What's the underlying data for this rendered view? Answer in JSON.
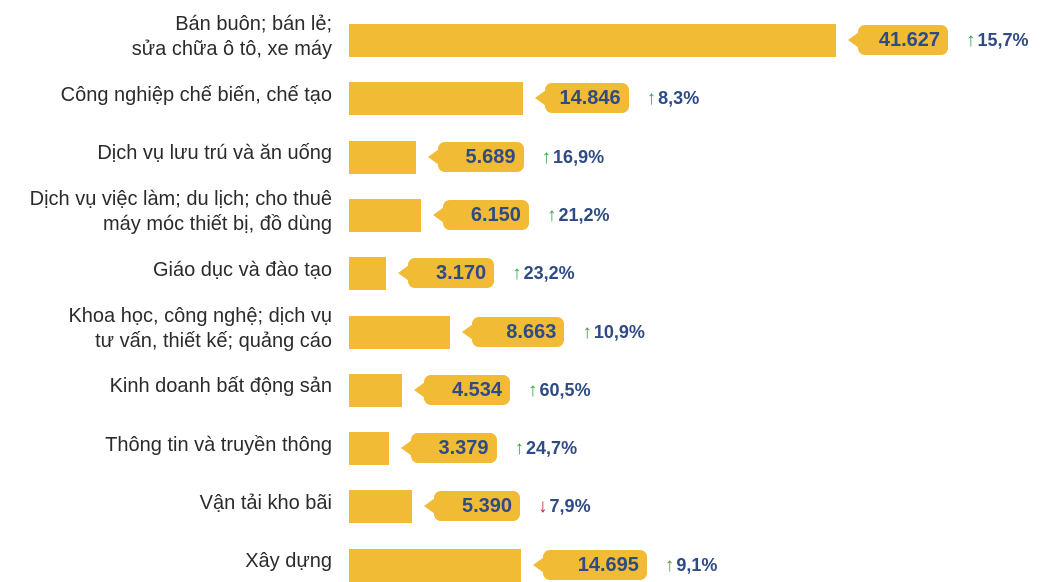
{
  "colors": {
    "bar": "#f1bb35",
    "value_text": "#2e4b86",
    "up": "#3aa648",
    "down": "#c0282f",
    "label": "#2b2b2b"
  },
  "icons": {
    "up": "up-arrow-icon",
    "down": "down-arrow-icon"
  },
  "chart_data": {
    "type": "bar",
    "orientation": "horizontal",
    "title": "",
    "xlabel": "",
    "ylabel": "",
    "xlim": [
      0,
      41627
    ],
    "grid": false,
    "categories": [
      "Bán buôn; bán lẻ;\nsửa chữa ô tô, xe máy",
      "Công nghiệp chế biến, chế tạo",
      "Dịch vụ lưu trú và ăn uống",
      "Dịch vụ việc làm; du lịch; cho thuê\nmáy móc thiết bị, đồ dùng",
      "Giáo dục và đào tạo",
      "Khoa học, công nghệ; dịch vụ\ntư vấn, thiết kế; quảng cáo",
      "Kinh doanh bất động sản",
      "Thông tin và truyền thông",
      "Vận tải kho bãi",
      "Xây dựng"
    ],
    "values": [
      41627,
      14846,
      5689,
      6150,
      3170,
      8663,
      4534,
      3379,
      5390,
      14695
    ],
    "value_labels": [
      "41.627",
      "14.846",
      "5.689",
      "6.150",
      "3.170",
      "8.663",
      "4.534",
      "3.379",
      "5.390",
      "14.695"
    ],
    "changes": [
      {
        "direction": "up",
        "label": "15,7%"
      },
      {
        "direction": "up",
        "label": "8,3%"
      },
      {
        "direction": "up",
        "label": "16,9%"
      },
      {
        "direction": "up",
        "label": "21,2%"
      },
      {
        "direction": "up",
        "label": "23,2%"
      },
      {
        "direction": "up",
        "label": "10,9%"
      },
      {
        "direction": "up",
        "label": "60,5%"
      },
      {
        "direction": "up",
        "label": "24,7%"
      },
      {
        "direction": "down",
        "label": "7,9%"
      },
      {
        "direction": "up",
        "label": "9,1%"
      }
    ]
  }
}
